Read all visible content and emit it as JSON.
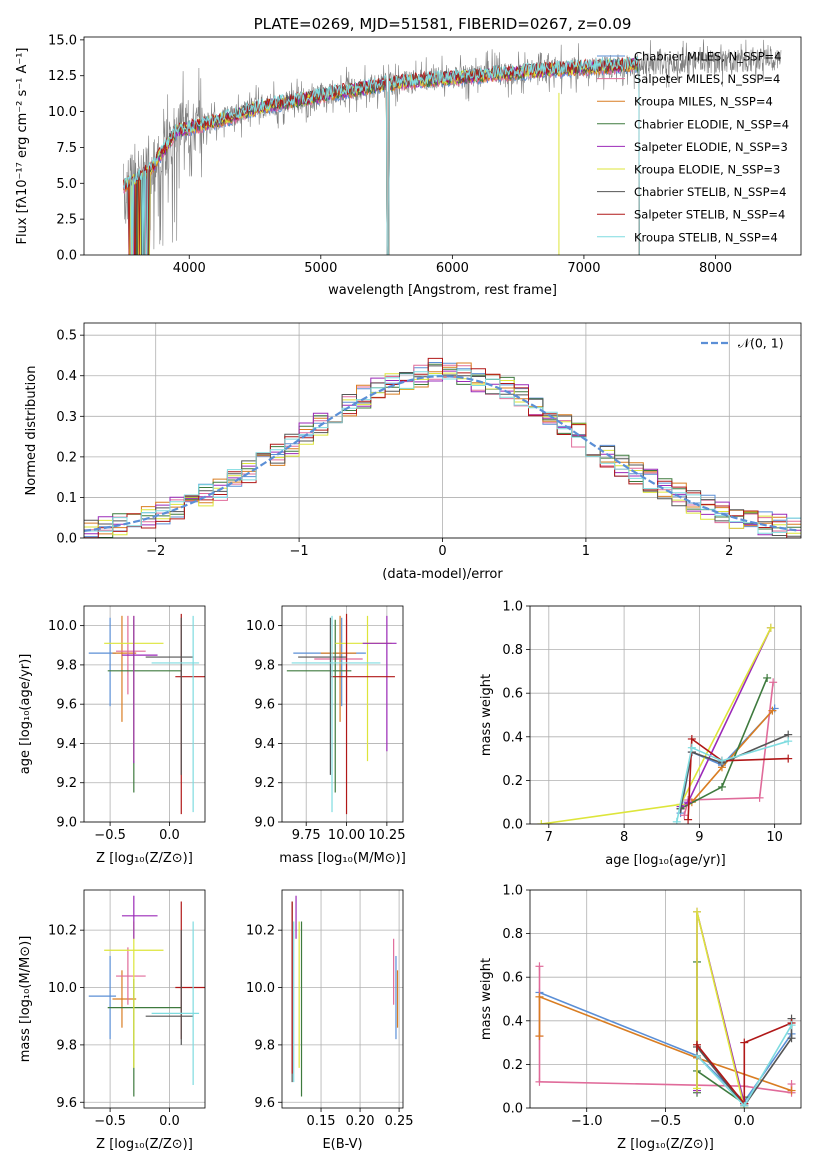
{
  "chart_data": [
    {
      "id": "spectrum",
      "type": "line",
      "title": "PLATE=0269, MJD=51581, FIBERID=0267, z=0.09",
      "xlabel": "wavelength [Angstrom, rest frame]",
      "ylabel": "Flux [fλ10⁻¹⁷ erg cm⁻² s⁻¹ A⁻¹]",
      "xlim": [
        3200,
        8650
      ],
      "ylim": [
        0,
        15.2
      ],
      "xticks": [
        "4000",
        "5000",
        "6000",
        "7000",
        "8000"
      ],
      "yticks": [
        "0.0",
        "2.5",
        "5.0",
        "7.5",
        "10.0",
        "12.5",
        "15.0"
      ],
      "legend_position": "right",
      "data_trace": {
        "name": "data",
        "color": "#808080",
        "x_range": [
          3500,
          8500
        ]
      },
      "model_anchor_points": {
        "x": [
          3500,
          3700,
          3900,
          4100,
          4300,
          4500,
          4700,
          4900,
          5100,
          5300,
          5500,
          5700,
          5900,
          6100,
          6300,
          6500,
          6700,
          6900,
          7100,
          7300,
          7420
        ],
        "y": [
          4.8,
          5.9,
          8.6,
          9.1,
          9.6,
          10.2,
          10.6,
          10.9,
          11.3,
          11.6,
          11.9,
          12.1,
          12.3,
          12.4,
          12.6,
          12.7,
          12.9,
          13.0,
          13.1,
          13.2,
          13.3
        ]
      },
      "series": [
        {
          "name": "Chabrier MILES, N_SSP=4",
          "color": "#5b8fd6"
        },
        {
          "name": "Salpeter MILES, N_SSP=4",
          "color": "#e06b9a"
        },
        {
          "name": "Kroupa MILES, N_SSP=4",
          "color": "#d97d22"
        },
        {
          "name": "Chabrier ELODIE, N_SSP=4",
          "color": "#3e7a3e"
        },
        {
          "name": "Salpeter ELODIE, N_SSP=3",
          "color": "#9b2ab8"
        },
        {
          "name": "Kroupa ELODIE, N_SSP=3",
          "color": "#dde53a"
        },
        {
          "name": "Chabrier STELIB, N_SSP=4",
          "color": "#555555"
        },
        {
          "name": "Salpeter STELIB, N_SSP=4",
          "color": "#b01818"
        },
        {
          "name": "Kroupa STELIB, N_SSP=4",
          "color": "#7fdce0"
        }
      ]
    },
    {
      "id": "residuals",
      "type": "line",
      "xlabel": "(data-model)/error",
      "ylabel": "Normed distribution",
      "xlim": [
        -2.5,
        2.5
      ],
      "ylim": [
        0,
        0.53
      ],
      "xticks": [
        "−2",
        "−1",
        "0",
        "1",
        "2"
      ],
      "yticks": [
        "0.0",
        "0.1",
        "0.2",
        "0.3",
        "0.4",
        "0.5"
      ],
      "grid": true,
      "legend": "𝒩(0, 1)",
      "legend_position": "top-right",
      "bin_width": 0.1,
      "histogram_envelope": {
        "x": [
          -2.5,
          -2.25,
          -2.0,
          -1.75,
          -1.5,
          -1.25,
          -1.0,
          -0.75,
          -0.5,
          -0.25,
          0.0,
          0.25,
          0.5,
          0.75,
          1.0,
          1.25,
          1.5,
          1.75,
          2.0,
          2.25,
          2.5
        ],
        "y": [
          0.02,
          0.035,
          0.055,
          0.09,
          0.13,
          0.185,
          0.24,
          0.31,
          0.36,
          0.39,
          0.42,
          0.39,
          0.36,
          0.31,
          0.24,
          0.18,
          0.13,
          0.09,
          0.055,
          0.035,
          0.02
        ]
      }
    },
    {
      "id": "age-vs-Z",
      "type": "scatter",
      "xlabel": "Z [log₁₀(Z/Z⊙)]",
      "ylabel": "age  [log₁₀(age/yr)]",
      "xlim": [
        -0.72,
        0.3
      ],
      "ylim": [
        9.0,
        10.1
      ],
      "xticks": [
        "−0.5",
        "0.0"
      ],
      "yticks": [
        "9.0",
        "9.2",
        "9.4",
        "9.6",
        "9.8",
        "10.0"
      ],
      "grid": true,
      "points": [
        {
          "x": -0.5,
          "y": 9.86,
          "xerr": [
            0.18,
            0.05
          ],
          "yerr": [
            0.27,
            0.18
          ],
          "color": "#5b8fd6"
        },
        {
          "x": -0.4,
          "y": 9.86,
          "xerr": [
            0.08,
            0.12
          ],
          "yerr": [
            0.35,
            0.19
          ],
          "color": "#d97d22"
        },
        {
          "x": -0.35,
          "y": 9.87,
          "xerr": [
            0.1,
            0.15
          ],
          "yerr": [
            0.22,
            0.18
          ],
          "color": "#e06b9a"
        },
        {
          "x": -0.3,
          "y": 9.77,
          "xerr": [
            0.22,
            0.4
          ],
          "yerr": [
            0.62,
            0.26
          ],
          "color": "#3e7a3e"
        },
        {
          "x": -0.3,
          "y": 9.91,
          "xerr": [
            0.25,
            0.25
          ],
          "yerr": [
            0.6,
            0.14
          ],
          "color": "#dde53a"
        },
        {
          "x": -0.3,
          "y": 9.85,
          "xerr": [
            0.1,
            0.2
          ],
          "yerr": [
            0.55,
            0.2
          ],
          "color": "#9b2ab8"
        },
        {
          "x": 0.1,
          "y": 9.74,
          "xerr": [
            0.05,
            0.2
          ],
          "yerr": [
            0.7,
            0.32
          ],
          "color": "#b01818"
        },
        {
          "x": 0.1,
          "y": 9.84,
          "xerr": [
            0.3,
            0.1
          ],
          "yerr": [
            0.6,
            0.2
          ],
          "color": "#555555"
        },
        {
          "x": 0.2,
          "y": 9.81,
          "xerr": [
            0.35,
            0.05
          ],
          "yerr": [
            0.76,
            0.24
          ],
          "color": "#7fdce0"
        }
      ]
    },
    {
      "id": "age-vs-mass",
      "type": "scatter",
      "xlabel": "mass [log₁₀(M/M⊙)]",
      "xlim": [
        9.6,
        10.35
      ],
      "ylim": [
        9.0,
        10.1
      ],
      "xticks": [
        "9.75",
        "10.00",
        "10.25"
      ],
      "yticks": [
        "9.0",
        "9.2",
        "9.4",
        "9.6",
        "9.8",
        "10.0"
      ],
      "grid": true,
      "points": [
        {
          "x": 9.97,
          "y": 9.86,
          "xerr": [
            0.3,
            0.15
          ],
          "yerr": [
            0.27,
            0.18
          ],
          "color": "#5b8fd6"
        },
        {
          "x": 9.96,
          "y": 9.86,
          "xerr": [
            0.12,
            0.1
          ],
          "yerr": [
            0.35,
            0.19
          ],
          "color": "#d97d22"
        },
        {
          "x": 10.0,
          "y": 9.83,
          "xerr": [
            0.2,
            0.1
          ],
          "yerr": [
            0.22,
            0.2
          ],
          "color": "#e06b9a"
        },
        {
          "x": 9.93,
          "y": 9.77,
          "xerr": [
            0.3,
            0.1
          ],
          "yerr": [
            0.62,
            0.26
          ],
          "color": "#3e7a3e"
        },
        {
          "x": 10.13,
          "y": 9.91,
          "xerr": [
            0.2,
            0.15
          ],
          "yerr": [
            0.6,
            0.14
          ],
          "color": "#dde53a"
        },
        {
          "x": 10.25,
          "y": 9.91,
          "xerr": [
            0.15,
            0.06
          ],
          "yerr": [
            0.55,
            0.14
          ],
          "color": "#9b2ab8"
        },
        {
          "x": 10.0,
          "y": 9.74,
          "xerr": [
            0.1,
            0.3
          ],
          "yerr": [
            0.7,
            0.32
          ],
          "color": "#b01818"
        },
        {
          "x": 9.9,
          "y": 9.84,
          "xerr": [
            0.2,
            0.1
          ],
          "yerr": [
            0.6,
            0.2
          ],
          "color": "#555555"
        },
        {
          "x": 9.91,
          "y": 9.81,
          "xerr": [
            0.25,
            0.3
          ],
          "yerr": [
            0.76,
            0.24
          ],
          "color": "#7fdce0"
        }
      ]
    },
    {
      "id": "weight-vs-age",
      "type": "line",
      "xlabel": "age  [log₁₀(age/yr)]",
      "ylabel": "mass weight",
      "xlim": [
        6.75,
        10.35
      ],
      "ylim": [
        0.0,
        1.0
      ],
      "xticks": [
        "7",
        "8",
        "9",
        "10"
      ],
      "yticks": [
        "0.0",
        "0.2",
        "0.4",
        "0.6",
        "0.8",
        "1.0"
      ],
      "grid": true,
      "series": [
        {
          "name": "Chabrier MILES",
          "color": "#5b8fd6",
          "x": [
            8.75,
            8.9,
            9.3,
            10.0
          ],
          "y": [
            0.05,
            0.33,
            0.27,
            0.53
          ]
        },
        {
          "name": "Salpeter MILES",
          "color": "#e06b9a",
          "x": [
            8.8,
            8.85,
            9.8,
            9.98
          ],
          "y": [
            0.04,
            0.11,
            0.12,
            0.65
          ]
        },
        {
          "name": "Kroupa MILES",
          "color": "#d97d22",
          "x": [
            8.75,
            8.9,
            9.3,
            9.97
          ],
          "y": [
            0.07,
            0.1,
            0.26,
            0.52
          ]
        },
        {
          "name": "Chabrier ELODIE",
          "color": "#3e7a3e",
          "x": [
            8.75,
            9.3,
            9.9
          ],
          "y": [
            0.07,
            0.17,
            0.67
          ]
        },
        {
          "name": "Salpeter ELODIE",
          "color": "#9b2ab8",
          "x": [
            8.75,
            8.85,
            9.95
          ],
          "y": [
            0.08,
            0.1,
            0.9
          ]
        },
        {
          "name": "Kroupa ELODIE",
          "color": "#dde53a",
          "x": [
            6.9,
            8.75,
            9.95
          ],
          "y": [
            0.0,
            0.09,
            0.9
          ]
        },
        {
          "name": "Chabrier STELIB",
          "color": "#555555",
          "x": [
            8.75,
            8.9,
            9.3,
            10.18
          ],
          "y": [
            0.07,
            0.33,
            0.28,
            0.41
          ]
        },
        {
          "name": "Salpeter STELIB",
          "color": "#b01818",
          "x": [
            8.85,
            8.9,
            9.3,
            10.18
          ],
          "y": [
            0.02,
            0.39,
            0.29,
            0.3
          ]
        },
        {
          "name": "Kroupa STELIB",
          "color": "#7fdce0",
          "x": [
            8.7,
            8.9,
            9.3,
            10.18
          ],
          "y": [
            0.01,
            0.35,
            0.29,
            0.38
          ]
        }
      ]
    },
    {
      "id": "mass-vs-Z",
      "type": "scatter",
      "xlabel": "Z [log₁₀(Z/Z⊙)]",
      "ylabel": "mass [log₁₀(M/M⊙)]",
      "xlim": [
        -0.72,
        0.3
      ],
      "ylim": [
        9.58,
        10.34
      ],
      "xticks": [
        "−0.5",
        "0.0"
      ],
      "yticks": [
        "9.6",
        "9.8",
        "10.0",
        "10.2"
      ],
      "grid": true,
      "points": [
        {
          "x": -0.5,
          "y": 9.97,
          "xerr": [
            0.18,
            0.05
          ],
          "yerr": [
            0.15,
            0.14
          ],
          "color": "#5b8fd6"
        },
        {
          "x": -0.4,
          "y": 9.96,
          "xerr": [
            0.08,
            0.12
          ],
          "yerr": [
            0.1,
            0.1
          ],
          "color": "#d97d22"
        },
        {
          "x": -0.35,
          "y": 10.04,
          "xerr": [
            0.1,
            0.15
          ],
          "yerr": [
            0.1,
            0.1
          ],
          "color": "#e06b9a"
        },
        {
          "x": -0.3,
          "y": 9.93,
          "xerr": [
            0.22,
            0.4
          ],
          "yerr": [
            0.31,
            0.1
          ],
          "color": "#3e7a3e"
        },
        {
          "x": -0.3,
          "y": 10.13,
          "xerr": [
            0.25,
            0.25
          ],
          "yerr": [
            0.41,
            0.1
          ],
          "color": "#dde53a"
        },
        {
          "x": -0.3,
          "y": 10.25,
          "xerr": [
            0.1,
            0.2
          ],
          "yerr": [
            0.08,
            0.07
          ],
          "color": "#9b2ab8"
        },
        {
          "x": 0.1,
          "y": 10.0,
          "xerr": [
            0.05,
            0.2
          ],
          "yerr": [
            0.18,
            0.3
          ],
          "color": "#b01818"
        },
        {
          "x": 0.1,
          "y": 9.9,
          "xerr": [
            0.3,
            0.1
          ],
          "yerr": [
            0.1,
            0.3
          ],
          "color": "#555555"
        },
        {
          "x": 0.2,
          "y": 9.91,
          "xerr": [
            0.35,
            0.05
          ],
          "yerr": [
            0.25,
            0.32
          ],
          "color": "#7fdce0"
        }
      ]
    },
    {
      "id": "mass-vs-EBV",
      "type": "scatter",
      "xlabel": "E(B-V)",
      "xlim": [
        0.1,
        0.255
      ],
      "ylim": [
        9.58,
        10.34
      ],
      "xticks": [
        "0.15",
        "0.20",
        "0.25"
      ],
      "yticks": [
        "9.6",
        "9.8",
        "10.0",
        "10.2"
      ],
      "grid": true,
      "points": [
        {
          "x": 0.113,
          "y": 9.97,
          "xerr": [
            0.0,
            0.0
          ],
          "yerr": [
            0.3,
            0.33
          ],
          "color": "#555555"
        },
        {
          "x": 0.113,
          "y": 10.0,
          "xerr": [
            0.0,
            0.0
          ],
          "yerr": [
            0.3,
            0.3
          ],
          "color": "#b01818"
        },
        {
          "x": 0.115,
          "y": 9.94,
          "xerr": [
            0.0,
            0.0
          ],
          "yerr": [
            0.27,
            0.29
          ],
          "color": "#7fdce0"
        },
        {
          "x": 0.118,
          "y": 10.25,
          "xerr": [
            0.0,
            0.0
          ],
          "yerr": [
            0.08,
            0.07
          ],
          "color": "#9b2ab8"
        },
        {
          "x": 0.122,
          "y": 10.13,
          "xerr": [
            0.0,
            0.0
          ],
          "yerr": [
            0.41,
            0.1
          ],
          "color": "#dde53a"
        },
        {
          "x": 0.125,
          "y": 9.93,
          "xerr": [
            0.0,
            0.0
          ],
          "yerr": [
            0.31,
            0.3
          ],
          "color": "#3e7a3e"
        },
        {
          "x": 0.243,
          "y": 10.04,
          "xerr": [
            0.0,
            0.0
          ],
          "yerr": [
            0.1,
            0.13
          ],
          "color": "#e06b9a"
        },
        {
          "x": 0.246,
          "y": 9.97,
          "xerr": [
            0.0,
            0.0
          ],
          "yerr": [
            0.15,
            0.14
          ],
          "color": "#5b8fd6"
        },
        {
          "x": 0.248,
          "y": 9.96,
          "xerr": [
            0.0,
            0.0
          ],
          "yerr": [
            0.1,
            0.1
          ],
          "color": "#d97d22"
        }
      ]
    },
    {
      "id": "weight-vs-Z",
      "type": "line",
      "xlabel": "Z [log₁₀(Z/Z⊙)]",
      "ylabel": "mass weight",
      "xlim": [
        -1.36,
        0.36
      ],
      "ylim": [
        0.0,
        1.0
      ],
      "xticks": [
        "−1.0",
        "−0.5",
        "0.0"
      ],
      "yticks": [
        "0.0",
        "0.2",
        "0.4",
        "0.6",
        "0.8",
        "1.0"
      ],
      "grid": true,
      "series": [
        {
          "name": "Chabrier MILES",
          "color": "#5b8fd6",
          "x": [
            -1.3,
            -0.3,
            0.0,
            0.3
          ],
          "y": [
            0.53,
            0.24,
            0.03,
            0.34
          ]
        },
        {
          "name": "Salpeter MILES",
          "color": "#e06b9a",
          "x": [
            -1.3,
            -1.3,
            -1.3,
            0.0,
            0.3,
            0.3
          ],
          "y": [
            0.65,
            0.33,
            0.12,
            0.1,
            0.07,
            0.11
          ]
        },
        {
          "name": "Kroupa MILES",
          "color": "#d97d22",
          "x": [
            -1.3,
            -1.3,
            -0.3,
            0.3
          ],
          "y": [
            0.33,
            0.51,
            0.23,
            0.08
          ]
        },
        {
          "name": "Chabrier ELODIE",
          "color": "#3e7a3e",
          "x": [
            -0.3,
            -0.3,
            -0.3,
            0.0,
            0.0
          ],
          "y": [
            0.07,
            0.67,
            0.17,
            0.02,
            0.05
          ]
        },
        {
          "name": "Salpeter ELODIE",
          "color": "#9b2ab8",
          "x": [
            -0.3,
            -0.3,
            0.0
          ],
          "y": [
            0.08,
            0.9,
            0.02
          ]
        },
        {
          "name": "Kroupa ELODIE",
          "color": "#dde53a",
          "x": [
            -0.3,
            -0.3,
            0.0
          ],
          "y": [
            0.09,
            0.9,
            0.0
          ]
        },
        {
          "name": "Chabrier STELIB",
          "color": "#555555",
          "x": [
            -0.3,
            -0.3,
            0.0,
            0.3,
            0.3
          ],
          "y": [
            0.24,
            0.28,
            0.01,
            0.32,
            0.41
          ]
        },
        {
          "name": "Salpeter STELIB",
          "color": "#b01818",
          "x": [
            -0.3,
            -0.3,
            0.0,
            0.0,
            0.3
          ],
          "y": [
            0.24,
            0.29,
            0.02,
            0.3,
            0.39
          ]
        },
        {
          "name": "Kroupa STELIB",
          "color": "#7fdce0",
          "x": [
            -0.3,
            0.0,
            0.3
          ],
          "y": [
            0.24,
            0.01,
            0.38
          ]
        }
      ]
    }
  ]
}
